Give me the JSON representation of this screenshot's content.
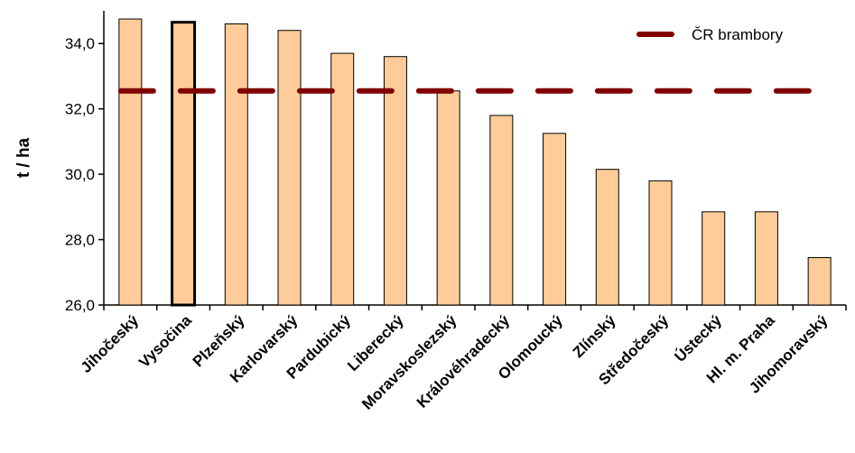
{
  "chart_data": {
    "type": "bar",
    "categories": [
      "Jihočeský",
      "Vysočina",
      "Plzeňský",
      "Karlovarský",
      "Pardubický",
      "Liberecký",
      "Moravskoslezský",
      "Královéhradecký",
      "Olomoucký",
      "Zlínský",
      "Středočeský",
      "Ústecký",
      "Hl. m. Praha",
      "Jihomoravský"
    ],
    "values": [
      34.75,
      34.65,
      34.6,
      34.4,
      33.7,
      33.6,
      32.55,
      31.8,
      31.25,
      30.15,
      29.8,
      28.85,
      28.85,
      27.45
    ],
    "highlighted_category": "Vysočina",
    "ylabel": "t / ha",
    "ylim": [
      26.0,
      35.0
    ],
    "yticks": [
      "26,0",
      "28,0",
      "30,0",
      "32,0",
      "34,0"
    ],
    "ytick_values": [
      26,
      28,
      30,
      32,
      34
    ],
    "reference_line": {
      "name": "ČR brambory",
      "value": 32.55,
      "style": "dashed"
    },
    "legend_position": "top-right",
    "grid": false,
    "colors": {
      "bar_fill": "#FFCC99",
      "bar_edge": "#000000",
      "reference_line": "#800000"
    }
  }
}
